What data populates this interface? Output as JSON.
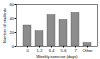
{
  "chart_data": {
    "type": "bar",
    "categories": [
      "0",
      "1-2",
      "3-4",
      "5-6",
      "7",
      "Other"
    ],
    "values": [
      30,
      22,
      45,
      38,
      48,
      5
    ],
    "color": "#8c8c8c",
    "xlabel": "Weekly exercise (days)",
    "ylabel": "Number of students",
    "ylim": [
      0,
      60
    ],
    "yticks": [
      0,
      20,
      40,
      60
    ],
    "grid": false
  }
}
